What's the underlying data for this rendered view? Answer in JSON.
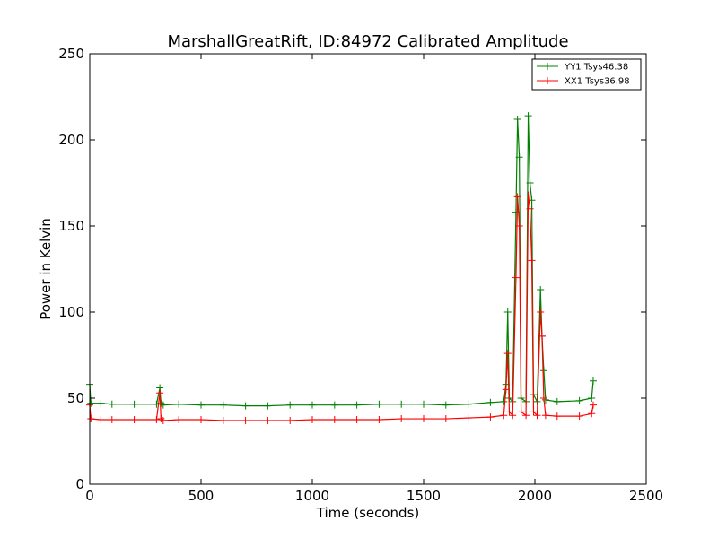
{
  "chart_data": {
    "type": "line",
    "title": "MarshallGreatRift, ID:84972 Calibrated Amplitude",
    "xlabel": "Time (seconds)",
    "ylabel": "Power in Kelvin",
    "xlim": [
      0,
      2500
    ],
    "ylim": [
      0,
      250
    ],
    "xticks": [
      "0",
      "500",
      "1000",
      "1500",
      "2000",
      "2500"
    ],
    "yticks": [
      "0",
      "50",
      "100",
      "150",
      "200",
      "250"
    ],
    "grid": false,
    "legend_position": "top-right",
    "series": [
      {
        "name": "YY1 Tsys46.38",
        "color": "#008000",
        "marker": "+",
        "points": [
          [
            0,
            58
          ],
          [
            5,
            47
          ],
          [
            50,
            47
          ],
          [
            100,
            46.5
          ],
          [
            200,
            46.5
          ],
          [
            300,
            46.5
          ],
          [
            315,
            56
          ],
          [
            320,
            47
          ],
          [
            330,
            46
          ],
          [
            400,
            46.5
          ],
          [
            500,
            46
          ],
          [
            600,
            46
          ],
          [
            700,
            45.5
          ],
          [
            800,
            45.5
          ],
          [
            900,
            46
          ],
          [
            1000,
            46
          ],
          [
            1100,
            46
          ],
          [
            1200,
            46
          ],
          [
            1300,
            46.5
          ],
          [
            1400,
            46.5
          ],
          [
            1500,
            46.5
          ],
          [
            1600,
            46
          ],
          [
            1700,
            46.5
          ],
          [
            1800,
            47.5
          ],
          [
            1860,
            48
          ],
          [
            1870,
            58
          ],
          [
            1878,
            100
          ],
          [
            1885,
            50
          ],
          [
            1900,
            48
          ],
          [
            1915,
            158
          ],
          [
            1922,
            212
          ],
          [
            1930,
            190
          ],
          [
            1938,
            50
          ],
          [
            1960,
            48
          ],
          [
            1970,
            214
          ],
          [
            1978,
            175
          ],
          [
            1986,
            165
          ],
          [
            1994,
            52
          ],
          [
            2010,
            48
          ],
          [
            2025,
            113
          ],
          [
            2032,
            86
          ],
          [
            2040,
            66
          ],
          [
            2048,
            49
          ],
          [
            2100,
            48
          ],
          [
            2200,
            48.5
          ],
          [
            2255,
            50
          ],
          [
            2262,
            60
          ]
        ]
      },
      {
        "name": "XX1 Tsys36.98",
        "color": "#ff0000",
        "marker": "+",
        "points": [
          [
            0,
            46
          ],
          [
            5,
            38
          ],
          [
            50,
            37.5
          ],
          [
            100,
            37.5
          ],
          [
            200,
            37.5
          ],
          [
            300,
            37.5
          ],
          [
            315,
            53
          ],
          [
            320,
            38
          ],
          [
            330,
            37
          ],
          [
            400,
            37.5
          ],
          [
            500,
            37.5
          ],
          [
            600,
            37
          ],
          [
            700,
            37
          ],
          [
            800,
            37
          ],
          [
            900,
            37
          ],
          [
            1000,
            37.5
          ],
          [
            1100,
            37.5
          ],
          [
            1200,
            37.5
          ],
          [
            1300,
            37.5
          ],
          [
            1400,
            38
          ],
          [
            1500,
            38
          ],
          [
            1600,
            38
          ],
          [
            1700,
            38.5
          ],
          [
            1800,
            39
          ],
          [
            1860,
            40
          ],
          [
            1870,
            55
          ],
          [
            1878,
            76
          ],
          [
            1885,
            42
          ],
          [
            1900,
            40
          ],
          [
            1915,
            120
          ],
          [
            1922,
            167
          ],
          [
            1930,
            150
          ],
          [
            1938,
            42
          ],
          [
            1960,
            40
          ],
          [
            1970,
            168
          ],
          [
            1978,
            160
          ],
          [
            1986,
            130
          ],
          [
            1994,
            42
          ],
          [
            2010,
            40
          ],
          [
            2025,
            100
          ],
          [
            2032,
            86
          ],
          [
            2040,
            50
          ],
          [
            2048,
            40
          ],
          [
            2100,
            39.5
          ],
          [
            2200,
            39.5
          ],
          [
            2255,
            41
          ],
          [
            2262,
            46
          ]
        ]
      }
    ]
  }
}
